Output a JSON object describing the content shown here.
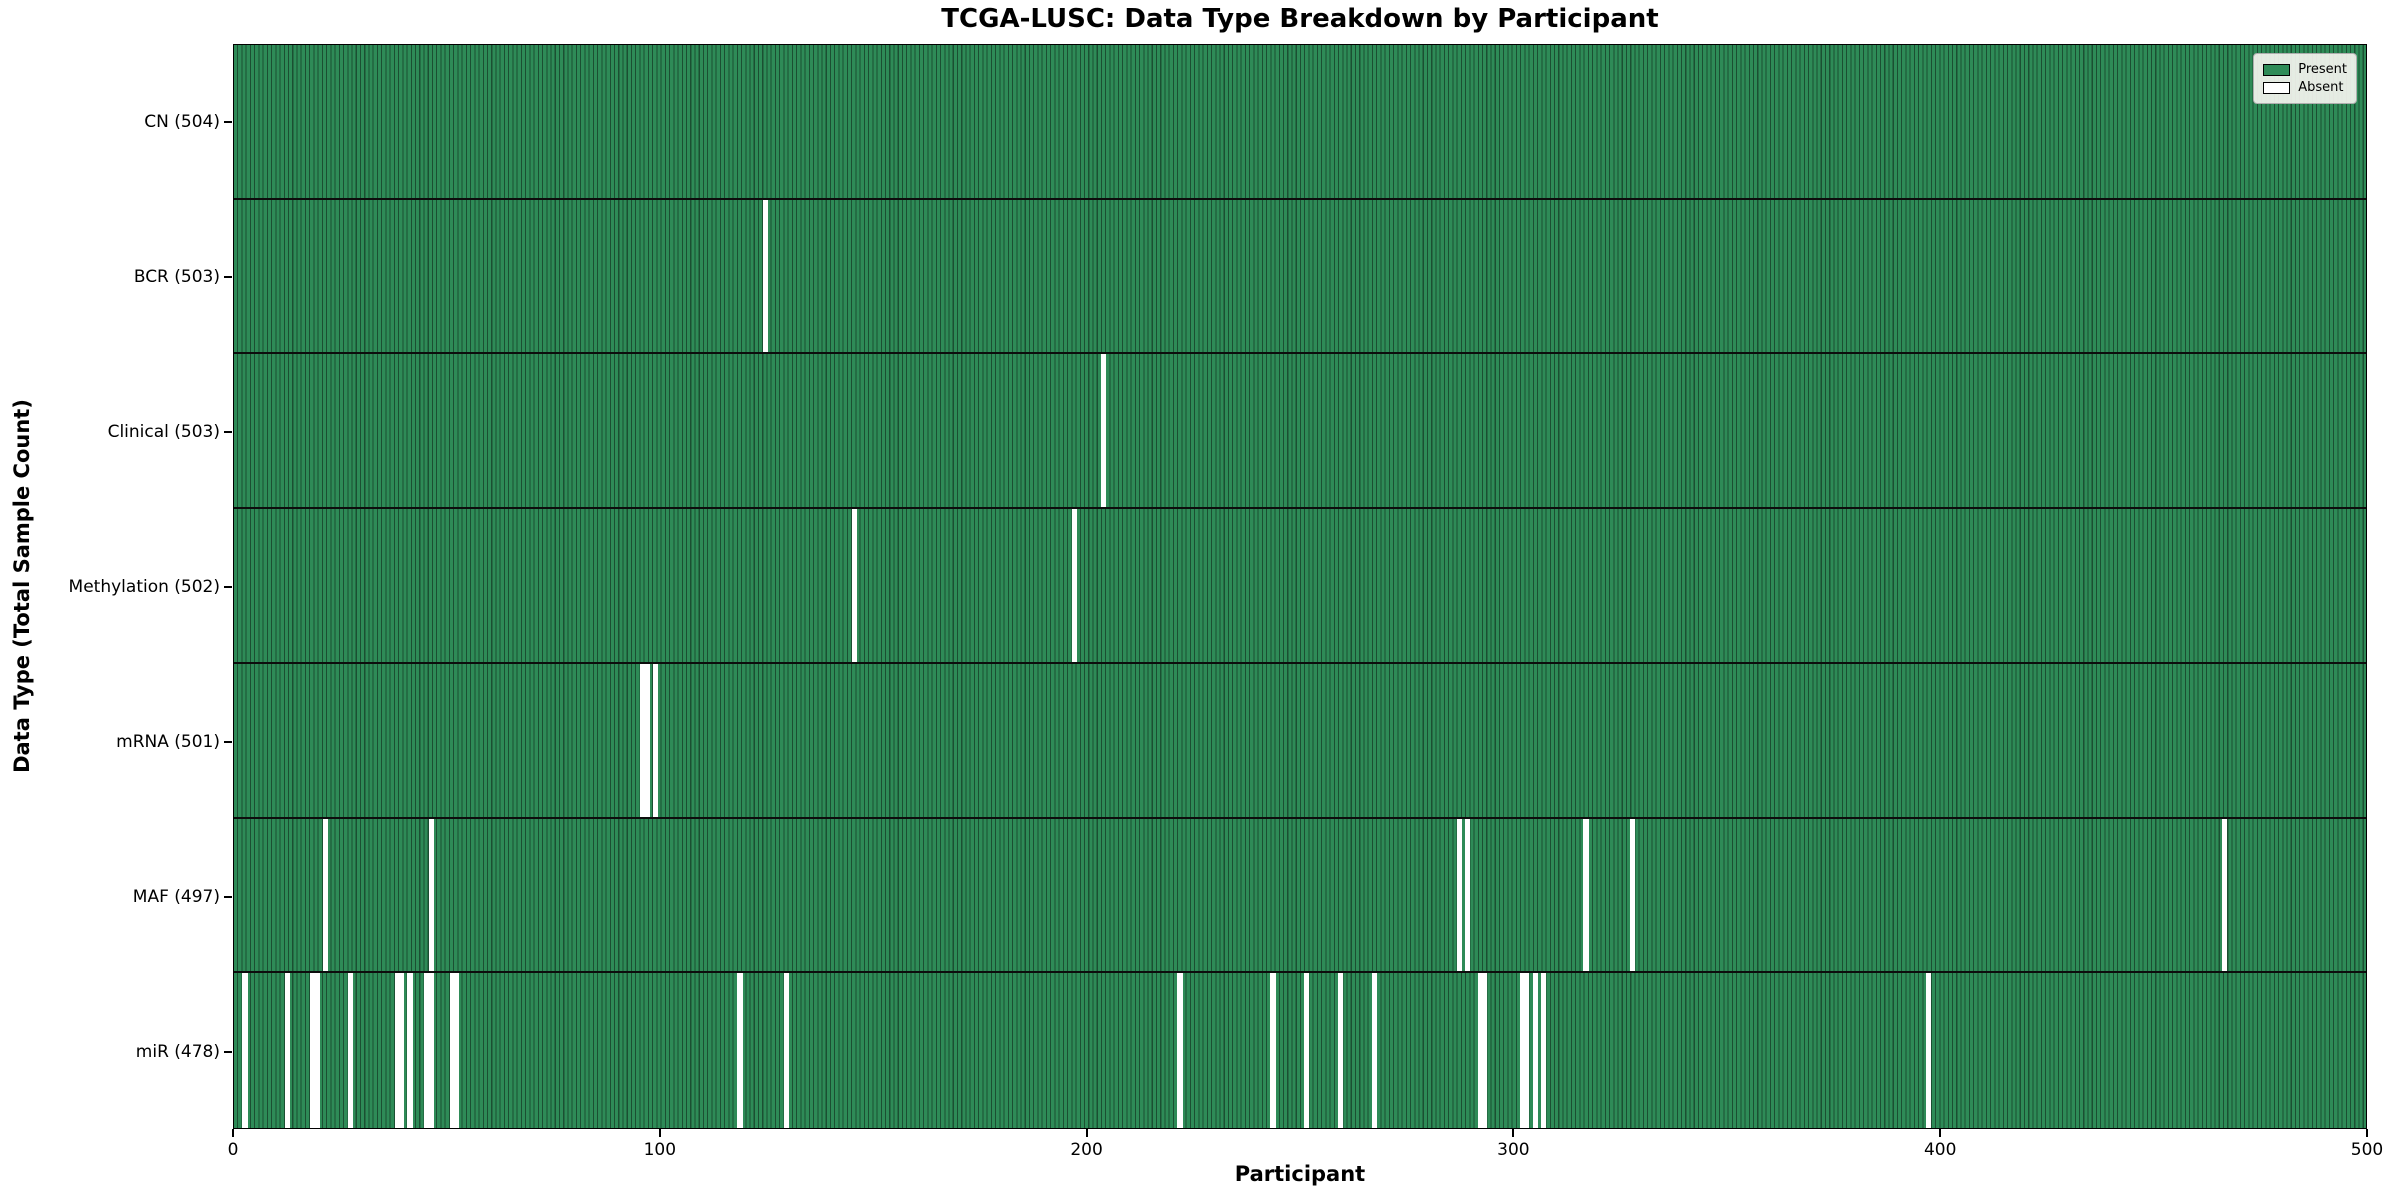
{
  "chart_data": {
    "type": "heatmap",
    "title": "TCGA-LUSC: Data Type Breakdown by Participant",
    "xlabel": "Participant",
    "ylabel": "Data Type (Total Sample Count)",
    "n_participants": 504,
    "x_ticks": [
      0,
      100,
      200,
      300,
      400,
      500
    ],
    "xlim": [
      0,
      500
    ],
    "grid": false,
    "legend_position": "upper right",
    "legend": [
      {
        "label": "Present",
        "color": "#2e8b57"
      },
      {
        "label": "Absent",
        "color": "#ffffff"
      }
    ],
    "colors": {
      "present_fill": "#2e8b57",
      "bar_edge": "#1b4f32",
      "absent_fill": "#ffffff",
      "row_separator": "#0d0d0d",
      "plot_border": "#000000",
      "legend_bg": "#f3f3ee",
      "legend_border": "#aeaeae"
    },
    "rows": [
      {
        "name": "CN",
        "label": "CN (504)",
        "present_count": 504,
        "absent_participants": []
      },
      {
        "name": "BCR",
        "label": "BCR (503)",
        "present_count": 503,
        "absent_participants": [
          125
        ]
      },
      {
        "name": "Clinical",
        "label": "Clinical (503)",
        "present_count": 503,
        "absent_participants": [
          205
        ]
      },
      {
        "name": "Methylation",
        "label": "Methylation (502)",
        "present_count": 502,
        "absent_participants": [
          146,
          198
        ]
      },
      {
        "name": "mRNA",
        "label": "mRNA (501)",
        "present_count": 501,
        "absent_participants": [
          96,
          97,
          99
        ]
      },
      {
        "name": "MAF",
        "label": "MAF (497)",
        "present_count": 497,
        "absent_participants": [
          21,
          46,
          289,
          291,
          319,
          330,
          470
        ]
      },
      {
        "name": "miR",
        "label": "miR (478)",
        "present_count": 478,
        "absent_participants": [
          2,
          12,
          18,
          19,
          27,
          38,
          39,
          41,
          45,
          46,
          51,
          52,
          119,
          130,
          223,
          245,
          253,
          261,
          269,
          294,
          295,
          304,
          305,
          307,
          309,
          400
        ]
      }
    ]
  }
}
